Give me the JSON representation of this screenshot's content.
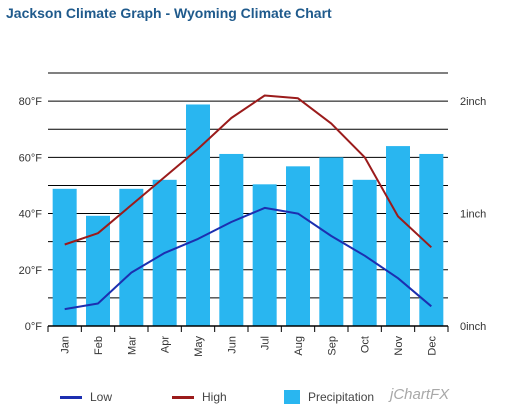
{
  "title": "Jackson Climate Graph - Wyoming Climate Chart",
  "brand": "jChartFX",
  "colors": {
    "title": "#1f5a8c",
    "low": "#1c2fb0",
    "high": "#9b1b1b",
    "precipitation": "#29b6f0",
    "gridline": "#000000",
    "axis_text": "#333333"
  },
  "legend": [
    {
      "key": "low",
      "label": "Low",
      "kind": "line"
    },
    {
      "key": "high",
      "label": "High",
      "kind": "line"
    },
    {
      "key": "precipitation",
      "label": "Precipitation",
      "kind": "box"
    }
  ],
  "chart_data": {
    "type": "bar",
    "title": "Jackson Climate Graph - Wyoming Climate Chart",
    "categories": [
      "Jan",
      "Feb",
      "Mar",
      "Apr",
      "May",
      "Jun",
      "Jul",
      "Aug",
      "Sep",
      "Oct",
      "Nov",
      "Dec"
    ],
    "y_left": {
      "min": 0,
      "max": 90,
      "ticks": [
        0,
        20,
        40,
        60,
        80
      ],
      "tick_labels": [
        "0°F",
        "20°F",
        "40°F",
        "60°F",
        "80°F"
      ]
    },
    "y_right": {
      "min": 0,
      "max": 2.25,
      "ticks": [
        0,
        1,
        2
      ],
      "tick_labels": [
        "0inch",
        "1inch",
        "2inch"
      ]
    },
    "grid": true,
    "legend_position": "bottom",
    "series": [
      {
        "name": "Precipitation",
        "type": "bar",
        "axis": "right",
        "color": "#29b6f0",
        "values": [
          1.22,
          0.98,
          1.22,
          1.3,
          1.97,
          1.53,
          1.26,
          1.42,
          1.5,
          1.3,
          1.6,
          1.53
        ]
      },
      {
        "name": "High",
        "type": "line",
        "axis": "left",
        "color": "#9b1b1b",
        "values": [
          29,
          33,
          43,
          53,
          63,
          74,
          82,
          81,
          72,
          60,
          39,
          28
        ]
      },
      {
        "name": "Low",
        "type": "line",
        "axis": "left",
        "color": "#1c2fb0",
        "values": [
          6,
          8,
          19,
          26,
          31,
          37,
          42,
          40,
          32,
          25,
          17,
          7
        ]
      }
    ]
  }
}
